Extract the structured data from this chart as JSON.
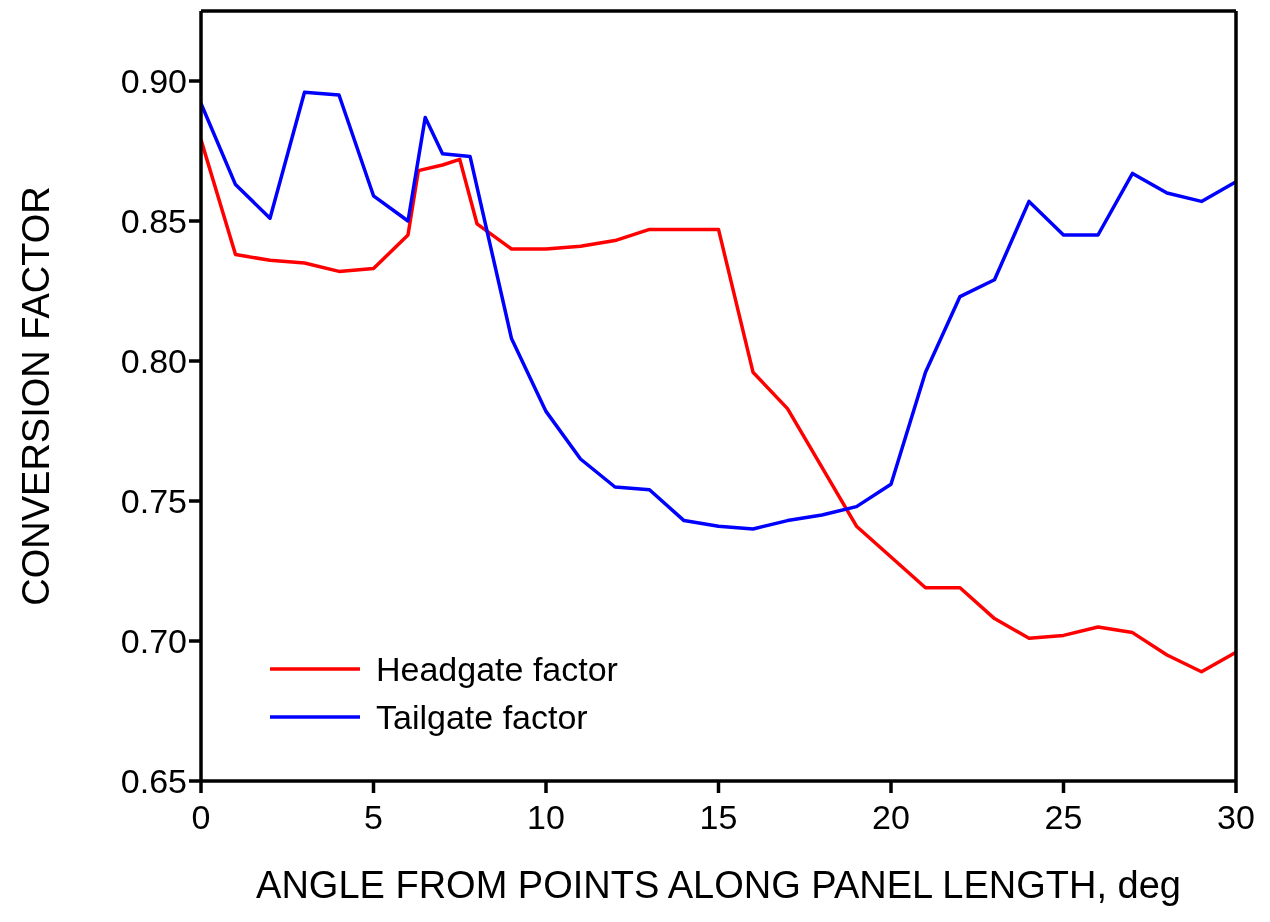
{
  "chart_data": {
    "type": "line",
    "xlabel": "ANGLE FROM POINTS ALONG PANEL LENGTH, deg",
    "ylabel": "CONVERSION FACTOR",
    "xlim": [
      0,
      30
    ],
    "xticks": [
      0,
      5,
      10,
      15,
      20,
      25,
      30
    ],
    "ylim": [
      0.65,
      0.925
    ],
    "yticks": [
      {
        "value": 0.65,
        "label": "0.65"
      },
      {
        "value": 0.7,
        "label": "0.70"
      },
      {
        "value": 0.75,
        "label": "0.75"
      },
      {
        "value": 0.8,
        "label": "0.80"
      },
      {
        "value": 0.85,
        "label": "0.85"
      },
      {
        "value": 0.9,
        "label": "0.90"
      }
    ],
    "legend": "bottom left",
    "marker": "none",
    "line_style": "solid",
    "series": [
      {
        "name": "Headgate factor",
        "color": "#ff0000",
        "x": [
          0,
          1,
          2,
          3,
          4,
          5,
          6,
          6.3,
          7,
          7.5,
          8,
          9,
          10,
          11,
          12,
          13,
          14,
          15,
          16,
          17,
          18,
          19,
          20,
          21,
          22,
          23,
          24,
          25,
          26,
          27,
          28,
          29,
          30
        ],
        "values": [
          0.879,
          0.838,
          0.836,
          0.835,
          0.832,
          0.833,
          0.845,
          0.868,
          0.87,
          0.872,
          0.849,
          0.84,
          0.84,
          0.841,
          0.843,
          0.847,
          0.847,
          0.847,
          0.796,
          0.783,
          0.762,
          0.741,
          0.73,
          0.719,
          0.719,
          0.708,
          0.701,
          0.702,
          0.705,
          0.703,
          0.695,
          0.689,
          0.696
        ]
      },
      {
        "name": "Tailgate factor",
        "color": "#0000ff",
        "x": [
          0,
          1,
          2,
          3,
          4,
          5,
          6,
          6.5,
          7,
          7.8,
          9,
          10,
          11,
          12,
          13,
          14,
          15,
          16,
          17,
          18,
          19,
          20,
          21,
          22,
          23,
          24,
          25,
          26,
          27,
          28,
          29,
          30
        ],
        "values": [
          0.892,
          0.863,
          0.851,
          0.896,
          0.895,
          0.859,
          0.85,
          0.887,
          0.874,
          0.873,
          0.808,
          0.782,
          0.765,
          0.755,
          0.754,
          0.743,
          0.741,
          0.74,
          0.743,
          0.745,
          0.748,
          0.756,
          0.796,
          0.823,
          0.829,
          0.857,
          0.845,
          0.845,
          0.867,
          0.86,
          0.857,
          0.864
        ]
      }
    ]
  }
}
